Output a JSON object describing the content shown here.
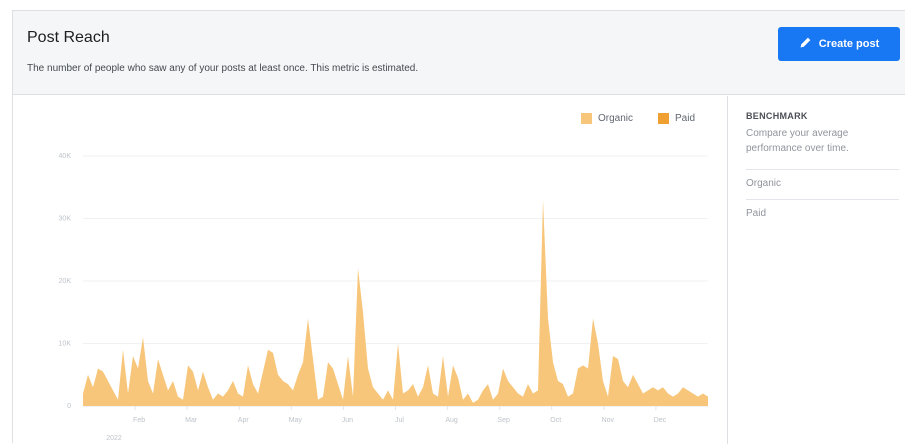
{
  "header": {
    "title": "Post Reach",
    "subtitle": "The number of people who saw any of your posts at least once. This metric is estimated.",
    "create_button": "Create post"
  },
  "benchmark": {
    "title": "BENCHMARK",
    "description": "Compare your average performance over time.",
    "options": [
      "Organic",
      "Paid"
    ]
  },
  "colors": {
    "organic": "#f7c67a",
    "paid": "#f0a030",
    "accent": "#1877f2"
  },
  "chart_data": {
    "type": "area",
    "legend": [
      "Organic",
      "Paid"
    ],
    "legend_position": "top-right",
    "y_ticks": [
      "0",
      "10K",
      "20K",
      "30K",
      "40K"
    ],
    "ylim": [
      0,
      40000
    ],
    "x_ticks": [
      "Feb",
      "Mar",
      "Apr",
      "May",
      "Jun",
      "Jul",
      "Aug",
      "Sep",
      "Oct",
      "Nov",
      "Dec"
    ],
    "year_label": "2022",
    "grid": true,
    "xlim": [
      0,
      1
    ],
    "series": [
      {
        "name": "Organic",
        "x": [
          0,
          0.008,
          0.016,
          0.024,
          0.032,
          0.04,
          0.048,
          0.056,
          0.064,
          0.072,
          0.08,
          0.088,
          0.096,
          0.104,
          0.112,
          0.12,
          0.128,
          0.136,
          0.144,
          0.152,
          0.16,
          0.168,
          0.176,
          0.184,
          0.192,
          0.2,
          0.208,
          0.216,
          0.224,
          0.232,
          0.24,
          0.248,
          0.256,
          0.264,
          0.272,
          0.28,
          0.288,
          0.296,
          0.304,
          0.312,
          0.32,
          0.328,
          0.336,
          0.344,
          0.352,
          0.36,
          0.368,
          0.376,
          0.384,
          0.392,
          0.4,
          0.408,
          0.416,
          0.424,
          0.432,
          0.44,
          0.448,
          0.456,
          0.464,
          0.472,
          0.48,
          0.488,
          0.496,
          0.504,
          0.512,
          0.52,
          0.528,
          0.536,
          0.544,
          0.552,
          0.56,
          0.568,
          0.576,
          0.584,
          0.592,
          0.6,
          0.608,
          0.616,
          0.624,
          0.632,
          0.64,
          0.648,
          0.656,
          0.664,
          0.672,
          0.68,
          0.688,
          0.696,
          0.704,
          0.712,
          0.72,
          0.728,
          0.736,
          0.744,
          0.752,
          0.76,
          0.768,
          0.776,
          0.784,
          0.792,
          0.8,
          0.808,
          0.816,
          0.824,
          0.832,
          0.84,
          0.848,
          0.856,
          0.864,
          0.872,
          0.88,
          0.888,
          0.896,
          0.904,
          0.912,
          0.92,
          0.928,
          0.936,
          0.944,
          0.952,
          0.96,
          0.968,
          0.976,
          0.984,
          0.992,
          1
        ],
        "y": [
          2000,
          5000,
          3000,
          6000,
          5500,
          4000,
          2500,
          1000,
          9000,
          2000,
          8000,
          6000,
          11000,
          4000,
          2000,
          7500,
          5000,
          2500,
          4000,
          1500,
          1000,
          6500,
          5500,
          2500,
          5500,
          3000,
          1000,
          2000,
          1500,
          2500,
          4000,
          2000,
          1500,
          6500,
          3500,
          2000,
          5500,
          9000,
          8500,
          5000,
          4000,
          3500,
          2500,
          5000,
          7000,
          14000,
          7500,
          1000,
          1500,
          7000,
          6000,
          3500,
          1000,
          8000,
          1500,
          22000,
          15000,
          6000,
          3000,
          2000,
          1000,
          2500,
          1000,
          10000,
          2000,
          2500,
          3500,
          1500,
          3000,
          6500,
          2000,
          1500,
          8000,
          1500,
          6500,
          4500,
          1000,
          2000,
          500,
          1000,
          2500,
          3500,
          1000,
          2000,
          6000,
          4000,
          3000,
          2000,
          1500,
          3500,
          2000,
          2500,
          33000,
          14000,
          7000,
          4000,
          3500,
          1500,
          2000,
          6000,
          6500,
          6000,
          14000,
          10000,
          4000,
          1500,
          8000,
          7500,
          4000,
          3000,
          5000,
          3500,
          2000,
          2500,
          3000,
          2500,
          3000,
          2000,
          1500,
          2000,
          3000,
          2500,
          2000,
          1500,
          2000,
          1500
        ]
      },
      {
        "name": "Paid",
        "x": [
          0,
          1
        ],
        "y": [
          0,
          0
        ]
      }
    ]
  }
}
